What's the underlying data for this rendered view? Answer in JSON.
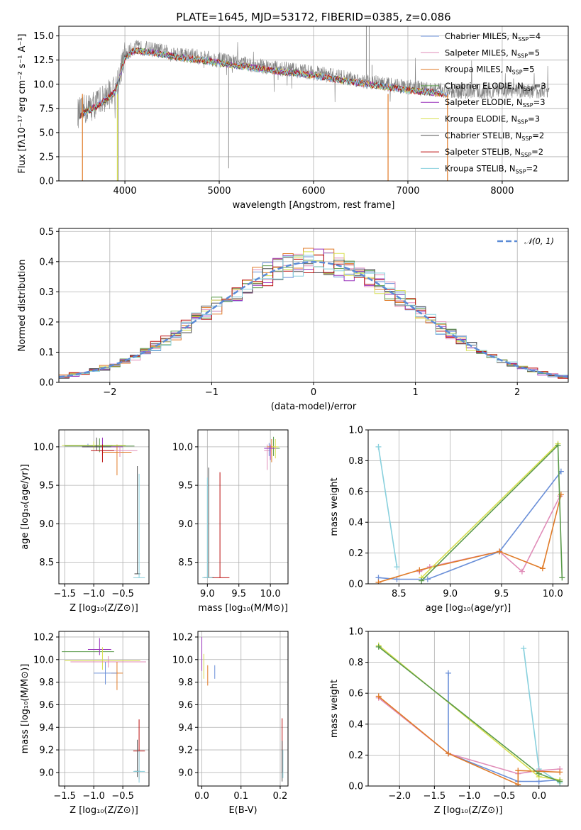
{
  "figure": {
    "title": "PLATE=1645, MJD=53172, FIBERID=0385, z=0.086"
  },
  "chart_data": [
    {
      "id": "spectrum",
      "type": "line",
      "xlabel": "wavelength [Angstrom, rest frame]",
      "ylabel": "Flux [fλ10⁻¹⁷ erg cm⁻² s⁻¹ A⁻¹]",
      "xlim": [
        3300,
        8700
      ],
      "ylim": [
        0,
        16
      ],
      "xticks": [
        4000,
        5000,
        6000,
        7000,
        8000
      ],
      "yticks": [
        0.0,
        2.5,
        5.0,
        7.5,
        10.0,
        12.5,
        15.0
      ],
      "legend_position": "top-right",
      "observed_color": "#808080",
      "series": [
        {
          "name": "Chabrier MILES, N_SSP=4",
          "color": "#6a8fd8"
        },
        {
          "name": "Salpeter MILES, N_SSP=5",
          "color": "#e08cb8"
        },
        {
          "name": "Kroupa MILES, N_SSP=5",
          "color": "#e07b28"
        },
        {
          "name": "Chabrier ELODIE, N_SSP=3",
          "color": "#5a9a4a"
        },
        {
          "name": "Salpeter ELODIE, N_SSP=3",
          "color": "#9933bb"
        },
        {
          "name": "Kroupa ELODIE, N_SSP=3",
          "color": "#d8e050"
        },
        {
          "name": "Chabrier STELIB, N_SSP=2",
          "color": "#505050"
        },
        {
          "name": "Salpeter STELIB, N_SSP=2",
          "color": "#bb1111"
        },
        {
          "name": "Kroupa STELIB, N_SSP=2",
          "color": "#88d0dd"
        }
      ],
      "continuum": {
        "x": [
          3500,
          3700,
          3900,
          4000,
          4100,
          4300,
          4500,
          4800,
          5000,
          5200,
          5500,
          6000,
          6500,
          7000,
          7400
        ],
        "y": [
          7.0,
          8.0,
          9.5,
          13.0,
          13.8,
          13.6,
          13.2,
          12.8,
          12.5,
          12.2,
          11.8,
          11.2,
          10.4,
          9.7,
          9.3
        ]
      }
    },
    {
      "id": "residuals",
      "type": "histogram",
      "xlabel": "(data-model)/error",
      "ylabel": "Normed distribution",
      "xlim": [
        -2.5,
        2.5
      ],
      "ylim": [
        0,
        0.51
      ],
      "xticks": [
        -2,
        -1,
        0,
        1,
        2
      ],
      "yticks": [
        0.0,
        0.1,
        0.2,
        0.3,
        0.4,
        0.5
      ],
      "legend": {
        "name": "𝒩(0, 1)",
        "color": "#5b8bd6",
        "position": "top-right"
      }
    },
    {
      "id": "age_vs_Z",
      "type": "errorbar",
      "xlabel": "Z [log10(Z/Z⊙)]",
      "ylabel": "age  [log10(age/yr)]",
      "xlim": [
        -1.6,
        -0.05
      ],
      "ylim": [
        8.22,
        10.22
      ],
      "xticks": [
        -1.5,
        -1.0,
        -0.5
      ],
      "yticks": [
        8.5,
        9.0,
        9.5,
        10.0
      ]
    },
    {
      "id": "age_vs_mass",
      "type": "errorbar",
      "xlabel": "mass [log10(M/M⊙)]",
      "ylabel": "",
      "xlim": [
        8.85,
        10.28
      ],
      "ylim": [
        8.22,
        10.22
      ],
      "xticks": [
        9.0,
        9.5,
        10.0
      ],
      "yticks": [
        8.5,
        9.0,
        9.5,
        10.0
      ]
    },
    {
      "id": "weight_vs_age",
      "type": "line",
      "xlabel": "age  [log10(age/yr)]",
      "ylabel": "mass weight",
      "xlim": [
        8.2,
        10.15
      ],
      "ylim": [
        0.0,
        1.0
      ],
      "xticks": [
        8.5,
        9.0,
        9.5,
        10.0
      ],
      "yticks": [
        0.0,
        0.2,
        0.4,
        0.6,
        0.8,
        1.0
      ],
      "series": [
        {
          "color": "#88d0dd",
          "x": [
            8.3,
            8.48
          ],
          "y": [
            0.89,
            0.11
          ]
        },
        {
          "color": "#6a8fd8",
          "x": [
            8.3,
            8.48,
            8.78,
            9.48,
            10.08
          ],
          "y": [
            0.04,
            0.03,
            0.03,
            0.21,
            0.73
          ]
        },
        {
          "color": "#e08cb8",
          "x": [
            8.7,
            8.8,
            9.48,
            9.7,
            10.07
          ],
          "y": [
            0.08,
            0.11,
            0.21,
            0.08,
            0.57
          ]
        },
        {
          "color": "#e07b28",
          "x": [
            8.3,
            8.7,
            9.48,
            9.9,
            10.08
          ],
          "y": [
            0.01,
            0.09,
            0.21,
            0.1,
            0.58
          ]
        },
        {
          "color": "#d8e050",
          "x": [
            8.72,
            10.05
          ],
          "y": [
            0.04,
            0.91
          ]
        },
        {
          "color": "#5a9a4a",
          "x": [
            8.72,
            10.05,
            10.09
          ],
          "y": [
            0.02,
            0.9,
            0.04
          ]
        }
      ]
    },
    {
      "id": "mass_vs_Z",
      "type": "errorbar",
      "xlabel": "Z [log10(Z/Z⊙)]",
      "ylabel": "mass [log10(M/M⊙)]",
      "xlim": [
        -1.6,
        -0.05
      ],
      "ylim": [
        8.88,
        10.25
      ],
      "xticks": [
        -1.5,
        -1.0,
        -0.5
      ],
      "yticks": [
        9.0,
        9.2,
        9.4,
        9.6,
        9.8,
        10.0,
        10.2
      ]
    },
    {
      "id": "mass_vs_ebv",
      "type": "errorbar",
      "xlabel": "E(B-V)",
      "ylabel": "",
      "xlim": [
        -0.01,
        0.22
      ],
      "ylim": [
        8.88,
        10.25
      ],
      "xticks": [
        0.0,
        0.1,
        0.2
      ],
      "yticks": [
        9.0,
        9.2,
        9.4,
        9.6,
        9.8,
        10.0,
        10.2
      ]
    },
    {
      "id": "weight_vs_Z",
      "type": "line",
      "xlabel": "Z [log10(Z/Z⊙)]",
      "ylabel": "mass weight",
      "xlim": [
        -2.45,
        0.42
      ],
      "ylim": [
        0.0,
        1.0
      ],
      "xticks": [
        -2.0,
        -1.5,
        -1.0,
        -0.5,
        0.0
      ],
      "yticks": [
        0.0,
        0.2,
        0.4,
        0.6,
        0.8,
        1.0
      ],
      "series": [
        {
          "color": "#88d0dd",
          "x": [
            -0.22,
            0.0,
            0.3
          ],
          "y": [
            0.89,
            0.11,
            0.02
          ]
        },
        {
          "color": "#6a8fd8",
          "x": [
            -1.3,
            -1.3,
            -0.3,
            0.0,
            0.3
          ],
          "y": [
            0.73,
            0.21,
            0.03,
            0.03,
            0.04
          ]
        },
        {
          "color": "#e08cb8",
          "x": [
            -2.3,
            -1.3,
            -0.3,
            0.0,
            0.3
          ],
          "y": [
            0.57,
            0.21,
            0.08,
            0.1,
            0.11
          ]
        },
        {
          "color": "#e07b28",
          "x": [
            -2.3,
            -1.3,
            -0.3,
            -0.3,
            0.3
          ],
          "y": [
            0.58,
            0.21,
            0.01,
            0.1,
            0.09
          ]
        },
        {
          "color": "#d8e050",
          "x": [
            -2.3,
            0.0,
            0.3
          ],
          "y": [
            0.91,
            0.06,
            0.04
          ]
        },
        {
          "color": "#5a9a4a",
          "x": [
            -2.3,
            0.0,
            0.3
          ],
          "y": [
            0.9,
            0.08,
            0.03
          ]
        }
      ]
    }
  ]
}
